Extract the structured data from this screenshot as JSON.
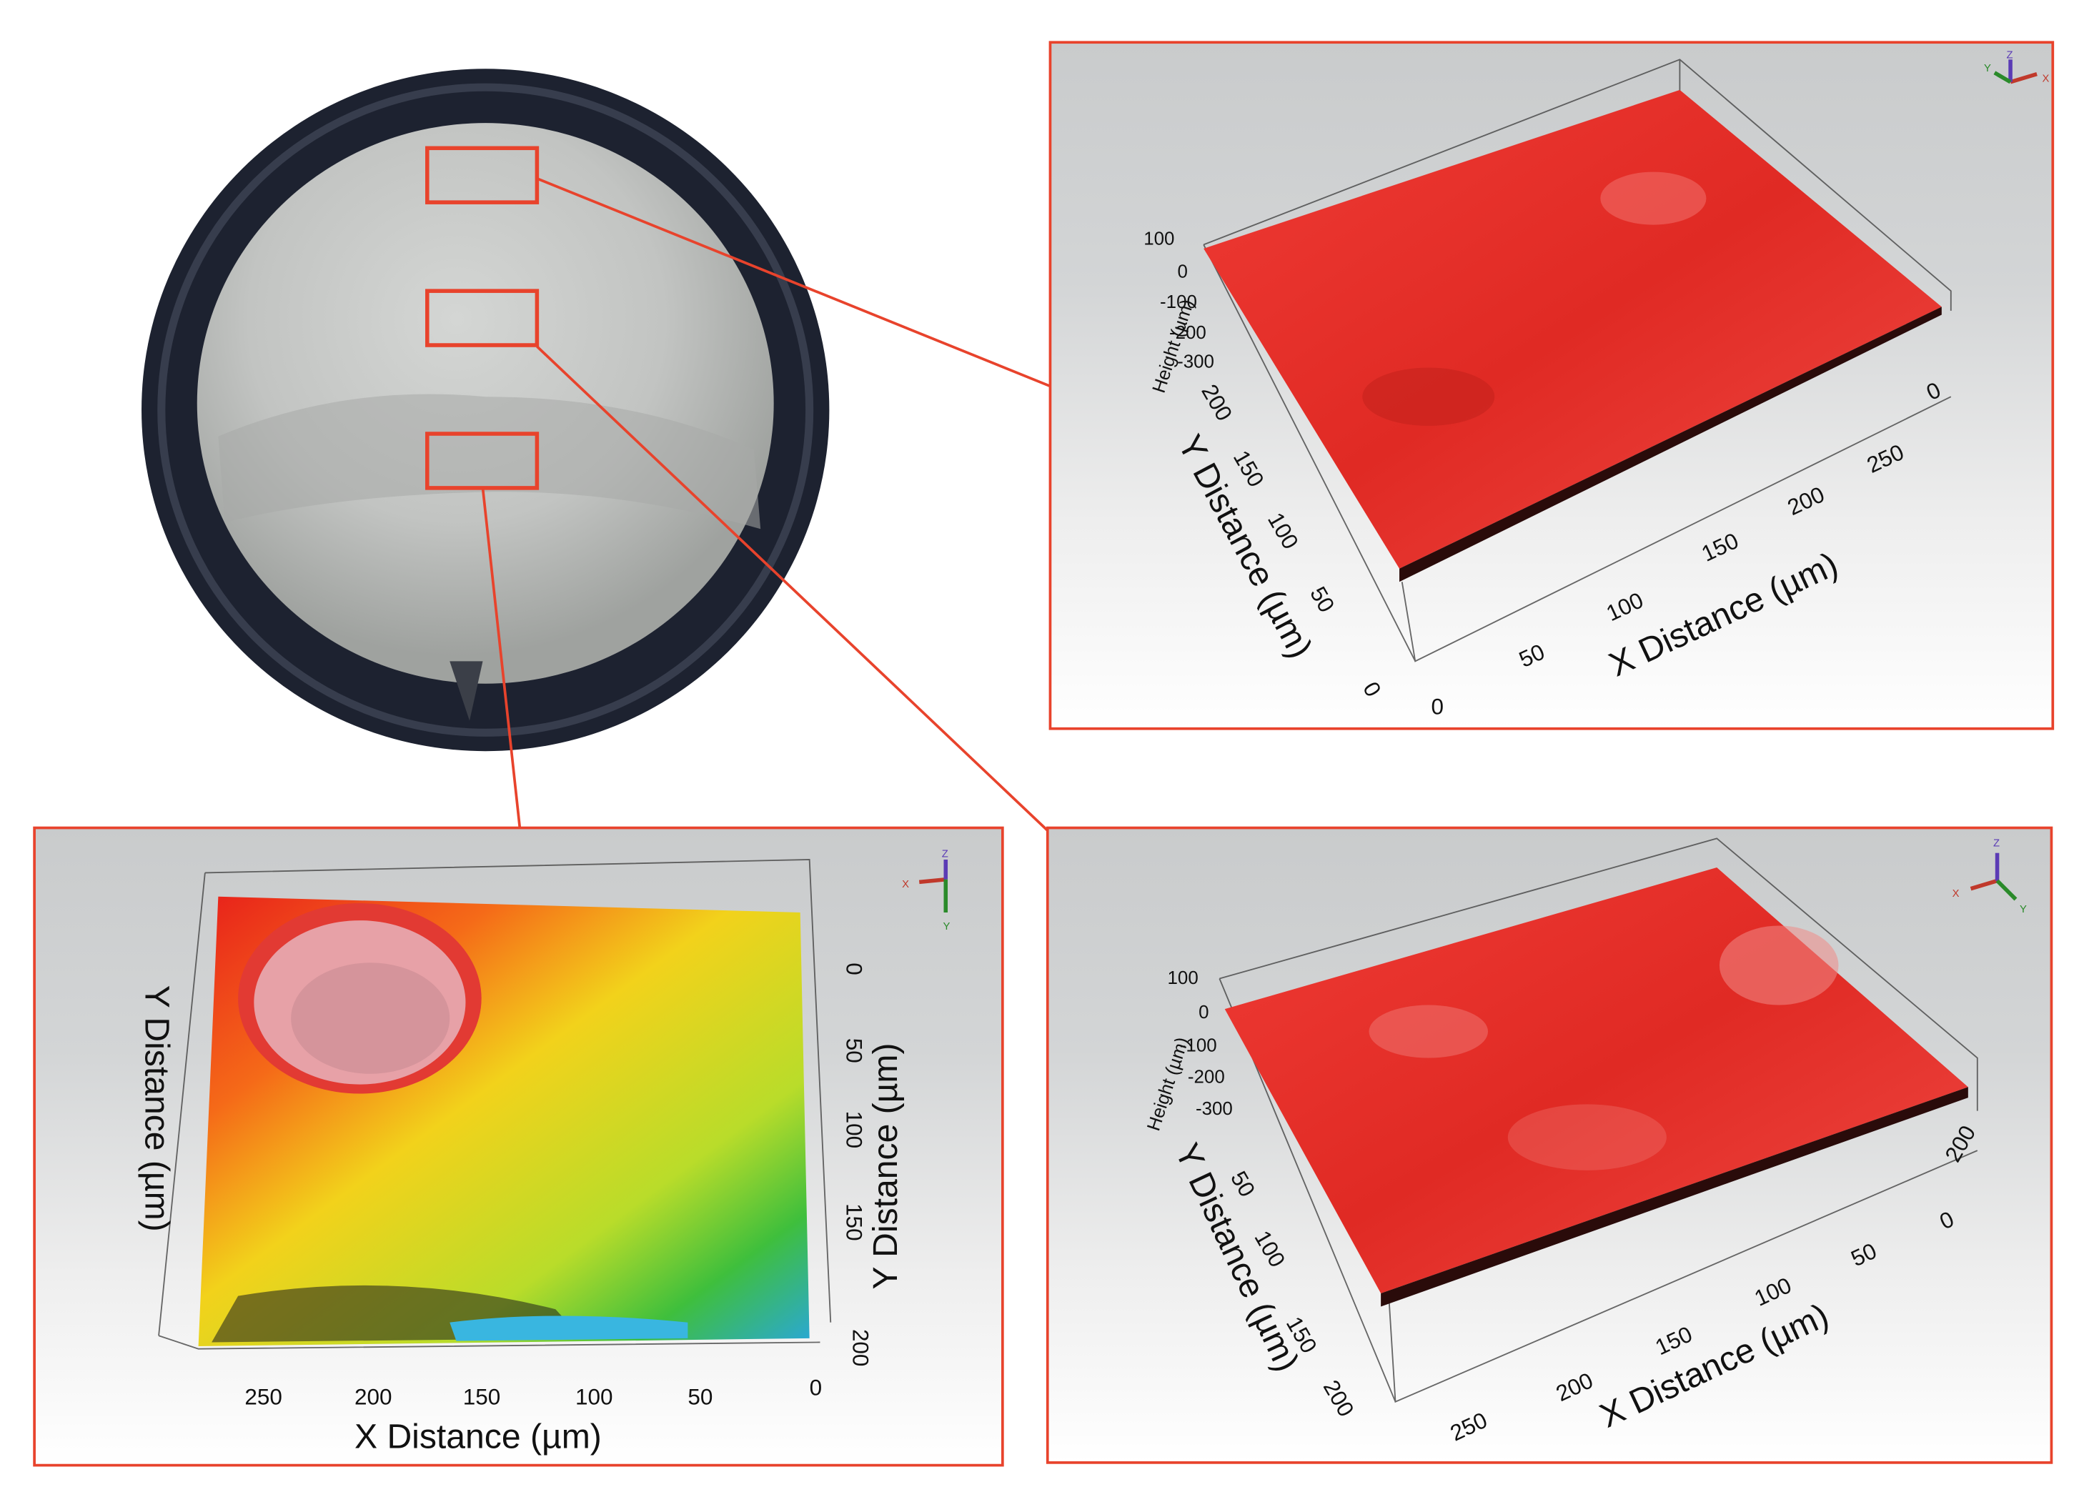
{
  "panel_top_right": {
    "height_label": "Height (µm)",
    "height_ticks": [
      "100",
      "0",
      "-100",
      "-200",
      "-300"
    ],
    "y_label": "Y Distance (µm)",
    "y_ticks": [
      "200",
      "150",
      "100",
      "50",
      "0"
    ],
    "x_label": "X Distance (µm)",
    "x_ticks": [
      "0",
      "50",
      "100",
      "150",
      "200",
      "250"
    ],
    "x_right_zero": "0",
    "axis_letters": [
      "X",
      "Y",
      "Z"
    ]
  },
  "panel_bottom_right": {
    "height_label": "Height (µm)",
    "height_ticks": [
      "100",
      "0",
      "-100",
      "-200",
      "-300"
    ],
    "y_label": "Y Distance (µm)",
    "y_ticks": [
      "50",
      "100",
      "150",
      "200"
    ],
    "x_label": "X Distance (µm)",
    "x_ticks": [
      "250",
      "200",
      "150",
      "100",
      "50"
    ],
    "x_right_ticks": [
      "0",
      "200"
    ],
    "axis_letters": [
      "X",
      "Y",
      "Z"
    ]
  },
  "panel_bottom_left": {
    "y_label_left": "Y Distance (µm)",
    "y_label_right": "Y Distance (µm)",
    "y_ticks_right": [
      "0",
      "50",
      "100",
      "150",
      "200"
    ],
    "x_label": "X Distance (µm)",
    "x_ticks": [
      "250",
      "200",
      "150",
      "100",
      "50",
      "0"
    ],
    "axis_letters": [
      "X",
      "Y",
      "Z"
    ]
  },
  "colors": {
    "callout": "#e8432c",
    "surface_red": "#e5302a",
    "sample_ring": "#1d2230"
  }
}
